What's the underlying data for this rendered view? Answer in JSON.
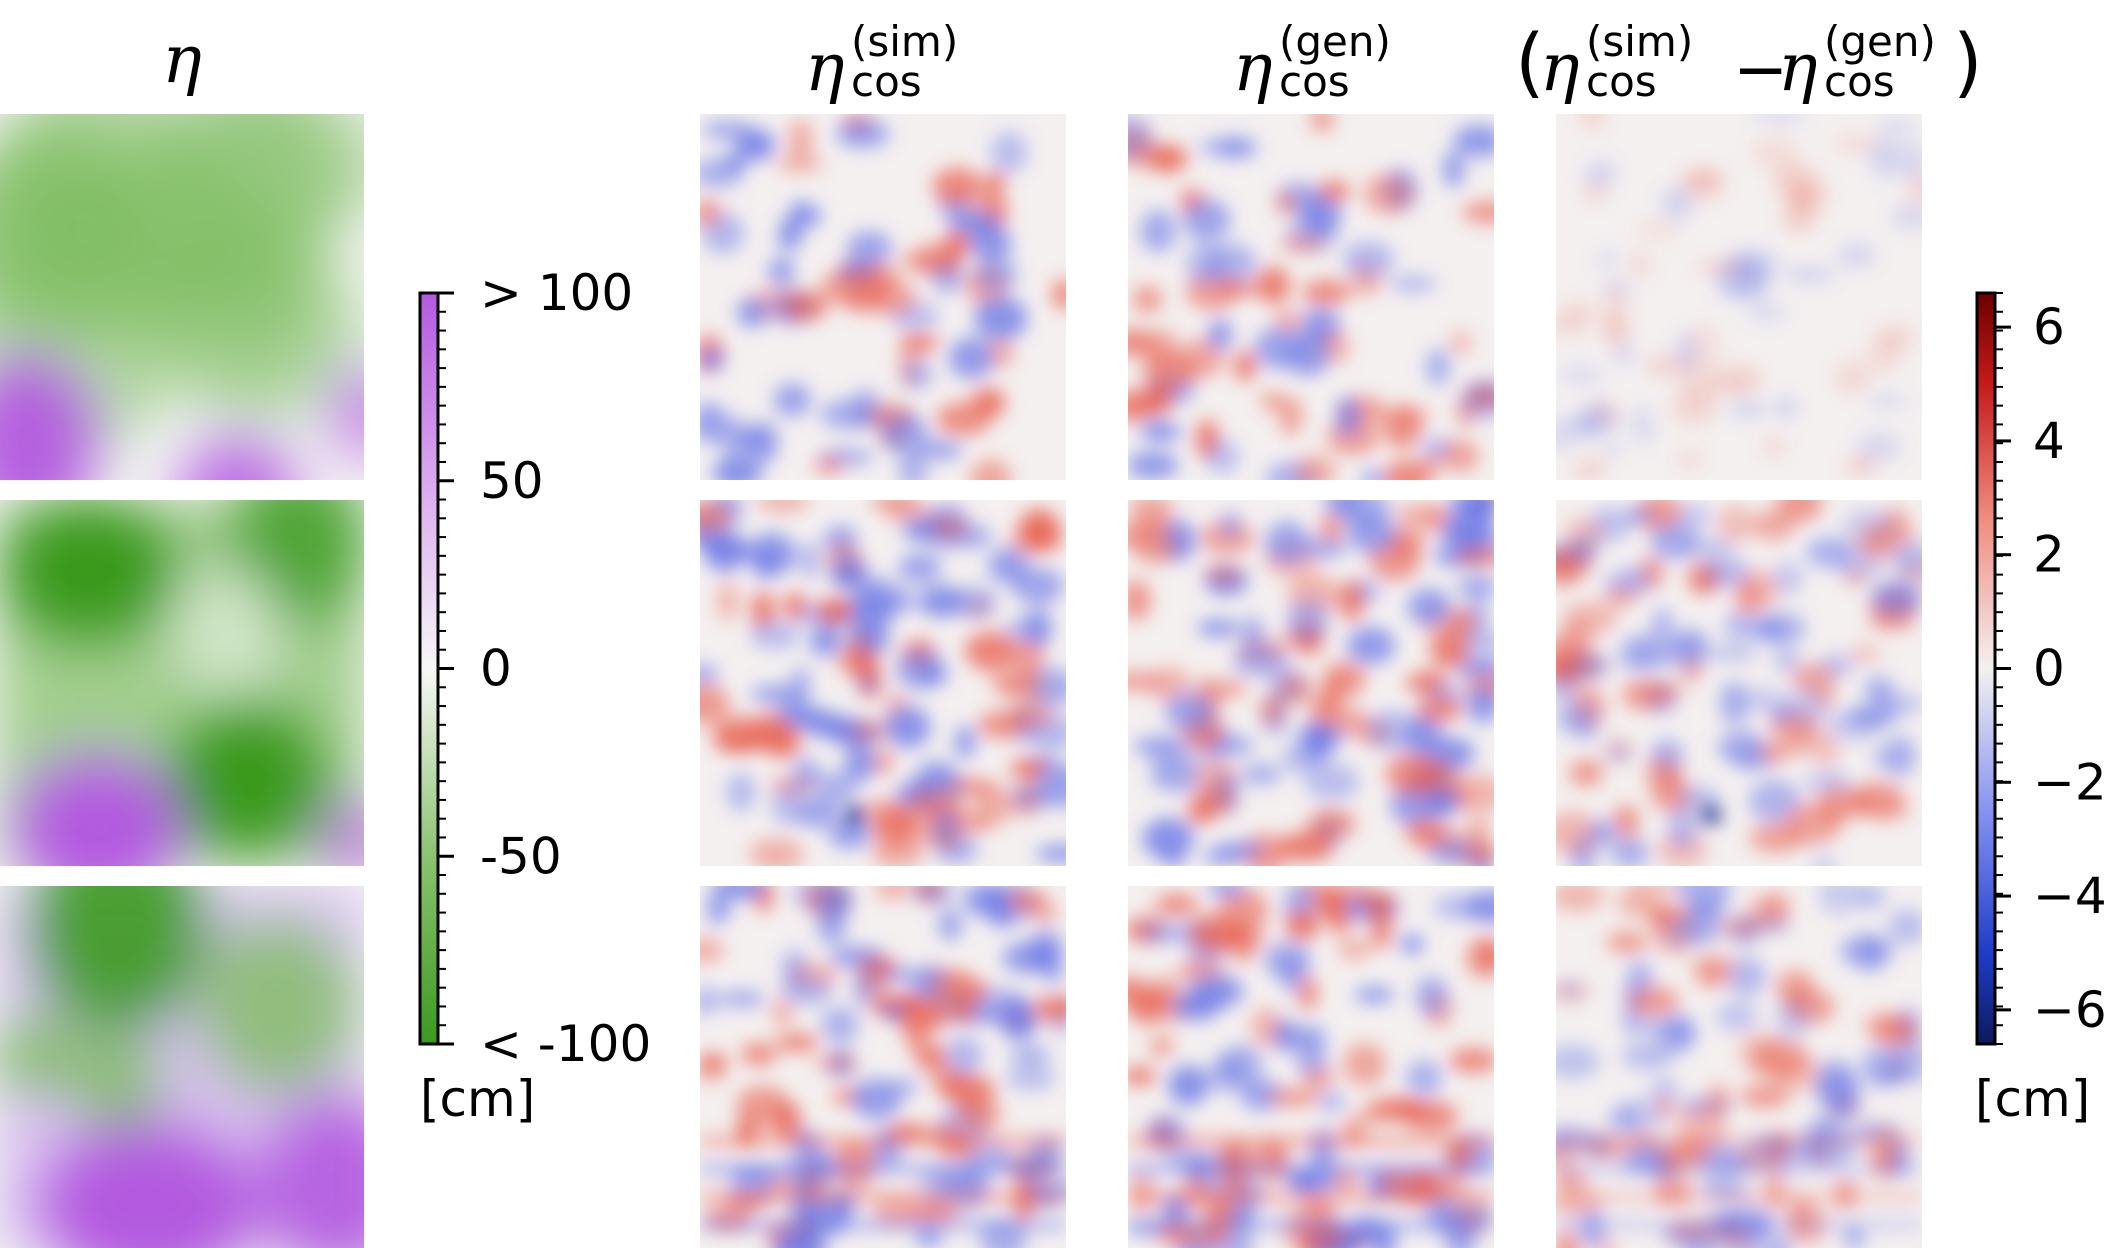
{
  "titles": {
    "eta": "η",
    "sim_symbol": "η",
    "sim_sup": "(sim)",
    "sim_sub": "cos",
    "gen_symbol": "η",
    "gen_sup": "(gen)",
    "gen_sub": "cos",
    "diff_open": "(",
    "diff_minus": "−",
    "diff_close": ")"
  },
  "chart_data": [
    {
      "type": "heatmap",
      "name": "eta",
      "rows": 3,
      "colormap": {
        "low": "#3a9a1f",
        "mid": "#f7f7f7",
        "high": "#b35ae0"
      },
      "colorbar": {
        "range": [
          -100,
          100
        ],
        "ticks": [
          {
            "value": 100,
            "label": "> 100"
          },
          {
            "value": 50,
            "label": "50"
          },
          {
            "value": 0,
            "label": "0"
          },
          {
            "value": -50,
            "label": "-50"
          },
          {
            "value": -100,
            "label": "< -100"
          }
        ],
        "unit": "[cm]"
      }
    },
    {
      "type": "heatmap",
      "name": "eta_cos_sim",
      "rows": 3,
      "colormap": {
        "low": "#1a2a8c",
        "mid": "#f4f0f0",
        "high": "#7a0000"
      }
    },
    {
      "type": "heatmap",
      "name": "eta_cos_gen",
      "rows": 3,
      "colormap": {
        "low": "#1a2a8c",
        "mid": "#f4f0f0",
        "high": "#7a0000"
      }
    },
    {
      "type": "heatmap",
      "name": "eta_cos_sim_minus_gen",
      "rows": 3,
      "colormap": {
        "low": "#1a2a8c",
        "mid": "#f4f0f0",
        "high": "#7a0000"
      },
      "colorbar": {
        "range": [
          -6.6,
          6.6
        ],
        "ticks": [
          {
            "value": 6,
            "label": "6"
          },
          {
            "value": 4,
            "label": "4"
          },
          {
            "value": 2,
            "label": "2"
          },
          {
            "value": 0,
            "label": "0"
          },
          {
            "value": -2,
            "label": "−2"
          },
          {
            "value": -4,
            "label": "−4"
          },
          {
            "value": -6,
            "label": "−6"
          }
        ],
        "unit": "[cm]"
      }
    }
  ]
}
